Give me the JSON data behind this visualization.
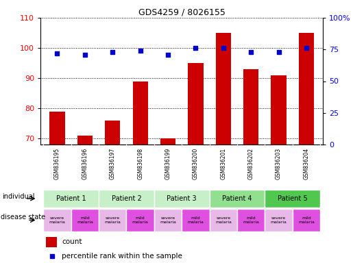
{
  "title": "GDS4259 / 8026155",
  "samples": [
    "GSM836195",
    "GSM836196",
    "GSM836197",
    "GSM836198",
    "GSM836199",
    "GSM836200",
    "GSM836201",
    "GSM836202",
    "GSM836203",
    "GSM836204"
  ],
  "counts": [
    79,
    71,
    76,
    89,
    70,
    95,
    105,
    93,
    91,
    105
  ],
  "percentiles": [
    72,
    71,
    73,
    74,
    71,
    76,
    76,
    73,
    73,
    76
  ],
  "ylim_left": [
    68,
    110
  ],
  "ylim_right": [
    0,
    100
  ],
  "yticks_left": [
    70,
    80,
    90,
    100,
    110
  ],
  "yticks_right": [
    0,
    25,
    50,
    75,
    100
  ],
  "ytick_labels_right": [
    "0",
    "25",
    "50",
    "75",
    "100%"
  ],
  "patients": [
    {
      "label": "Patient 1",
      "cols": [
        0,
        1
      ],
      "color": "#c8f0c8"
    },
    {
      "label": "Patient 2",
      "cols": [
        2,
        3
      ],
      "color": "#c8f0c8"
    },
    {
      "label": "Patient 3",
      "cols": [
        4,
        5
      ],
      "color": "#c8f0c8"
    },
    {
      "label": "Patient 4",
      "cols": [
        6,
        7
      ],
      "color": "#90e090"
    },
    {
      "label": "Patient 5",
      "cols": [
        8,
        9
      ],
      "color": "#50c850"
    }
  ],
  "disease_states": [
    {
      "label": "severe\nmalaria",
      "col": 0,
      "color": "#e8b8e8"
    },
    {
      "label": "mild\nmalaria",
      "col": 1,
      "color": "#e050e0"
    },
    {
      "label": "severe\nmalaria",
      "col": 2,
      "color": "#e8b8e8"
    },
    {
      "label": "mild\nmalaria",
      "col": 3,
      "color": "#e050e0"
    },
    {
      "label": "severe\nmalaria",
      "col": 4,
      "color": "#e8b8e8"
    },
    {
      "label": "mild\nmalaria",
      "col": 5,
      "color": "#e050e0"
    },
    {
      "label": "severe\nmalaria",
      "col": 6,
      "color": "#e8b8e8"
    },
    {
      "label": "mild\nmalaria",
      "col": 7,
      "color": "#e050e0"
    },
    {
      "label": "severe\nmalaria",
      "col": 8,
      "color": "#e8b8e8"
    },
    {
      "label": "mild\nmalaria",
      "col": 9,
      "color": "#e050e0"
    }
  ],
  "bar_color": "#cc0000",
  "scatter_color": "#0000cc",
  "bar_width": 0.55,
  "grid_color": "#888888",
  "bg_color": "#ffffff",
  "sample_row_bg": "#cccccc",
  "label_row1": "individual",
  "label_row2": "disease state",
  "legend_count_color": "#cc0000",
  "legend_pct_color": "#0000cc",
  "left_axis_color": "red",
  "right_axis_color": "blue"
}
